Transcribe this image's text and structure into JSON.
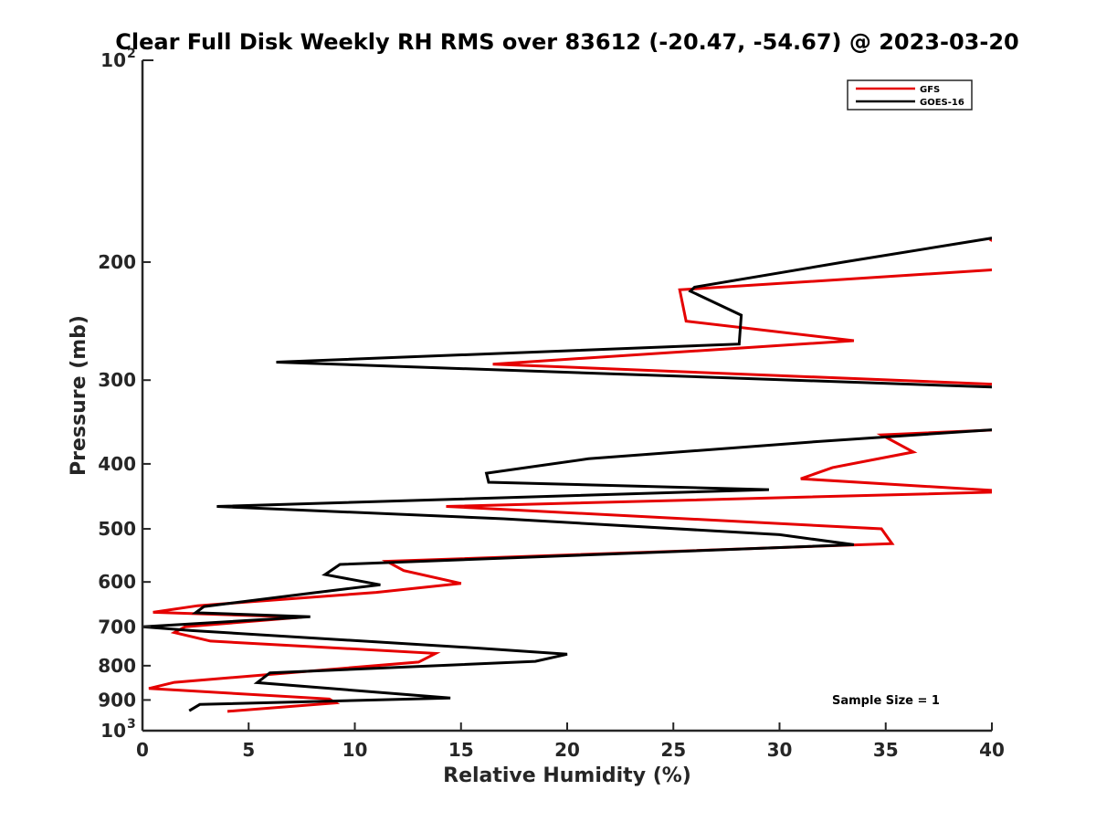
{
  "chart_data": {
    "type": "line",
    "title": "Clear Full Disk Weekly RH RMS over 83612 (-20.47, -54.67) @ 2023-03-20",
    "xlabel": "Relative Humidity (%)",
    "ylabel": "Pressure (mb)",
    "xlim": [
      0,
      40
    ],
    "ylim": [
      100,
      1000
    ],
    "y_scale": "log",
    "y_reversed": true,
    "grid": false,
    "x_ticks": [
      "0",
      "5",
      "10",
      "15",
      "20",
      "25",
      "30",
      "35",
      "40"
    ],
    "x_tick_values": [
      0,
      5,
      10,
      15,
      20,
      25,
      30,
      35,
      40
    ],
    "y_ticks": [
      "200",
      "300",
      "400",
      "500",
      "600",
      "700",
      "800",
      "900"
    ],
    "y_tick_values": [
      200,
      300,
      400,
      500,
      600,
      700,
      800,
      900
    ],
    "y_tick_decades": [
      {
        "value": 100,
        "base": "10",
        "exp": "2"
      },
      {
        "value": 1000,
        "base": "10",
        "exp": "3"
      }
    ],
    "legend_position": "top-right",
    "annotation": "Sample Size = 1",
    "series": [
      {
        "name": "GFS",
        "color": "#e50000",
        "points": [
          [
            39.9,
            185
          ],
          [
            40.2,
            187
          ],
          [
            40.5,
            205
          ],
          [
            25.3,
            220
          ],
          [
            25.6,
            245
          ],
          [
            33.5,
            262
          ],
          [
            16.5,
            284
          ],
          [
            41,
            305
          ],
          [
            41,
            355
          ],
          [
            34.8,
            362
          ],
          [
            36.3,
            384
          ],
          [
            32.5,
            405
          ],
          [
            31,
            421
          ],
          [
            41,
            440
          ],
          [
            14.3,
            463
          ],
          [
            34.8,
            500
          ],
          [
            35.3,
            526
          ],
          [
            11.5,
            559
          ],
          [
            12.3,
            577
          ],
          [
            15.0,
            603
          ],
          [
            11.0,
            622
          ],
          [
            2.6,
            651
          ],
          [
            0.5,
            666
          ],
          [
            7.5,
            677
          ],
          [
            2.0,
            700
          ],
          [
            1.5,
            714
          ],
          [
            3.2,
            735
          ],
          [
            13.8,
            767
          ],
          [
            13.0,
            790
          ],
          [
            1.5,
            847
          ],
          [
            0.3,
            865
          ],
          [
            8.8,
            897
          ],
          [
            9.1,
            909
          ],
          [
            4.0,
            936
          ]
        ]
      },
      {
        "name": "GOES-16",
        "color": "#000000",
        "points": [
          [
            41,
            182
          ],
          [
            33.0,
            200
          ],
          [
            26,
            218
          ],
          [
            25.8,
            221
          ],
          [
            28.2,
            240
          ],
          [
            28.1,
            265
          ],
          [
            6.3,
            282
          ],
          [
            41,
            308
          ],
          [
            41,
            354
          ],
          [
            32.0,
            370
          ],
          [
            21.0,
            393
          ],
          [
            16.2,
            413
          ],
          [
            16.3,
            426
          ],
          [
            29.5,
            437
          ],
          [
            3.5,
            463
          ],
          [
            17.0,
            483
          ],
          [
            30.0,
            510
          ],
          [
            33.5,
            528
          ],
          [
            9.3,
            565
          ],
          [
            8.6,
            585
          ],
          [
            11.2,
            606
          ],
          [
            8.0,
            623
          ],
          [
            2.9,
            653
          ],
          [
            2.5,
            667
          ],
          [
            7.9,
            676
          ],
          [
            0.0,
            700
          ],
          [
            2.3,
            709
          ],
          [
            15.8,
            753
          ],
          [
            20.0,
            769
          ],
          [
            18.5,
            788
          ],
          [
            6.0,
            820
          ],
          [
            5.4,
            848
          ],
          [
            14.5,
            894
          ],
          [
            2.7,
            914
          ],
          [
            2.2,
            934
          ]
        ]
      }
    ]
  }
}
